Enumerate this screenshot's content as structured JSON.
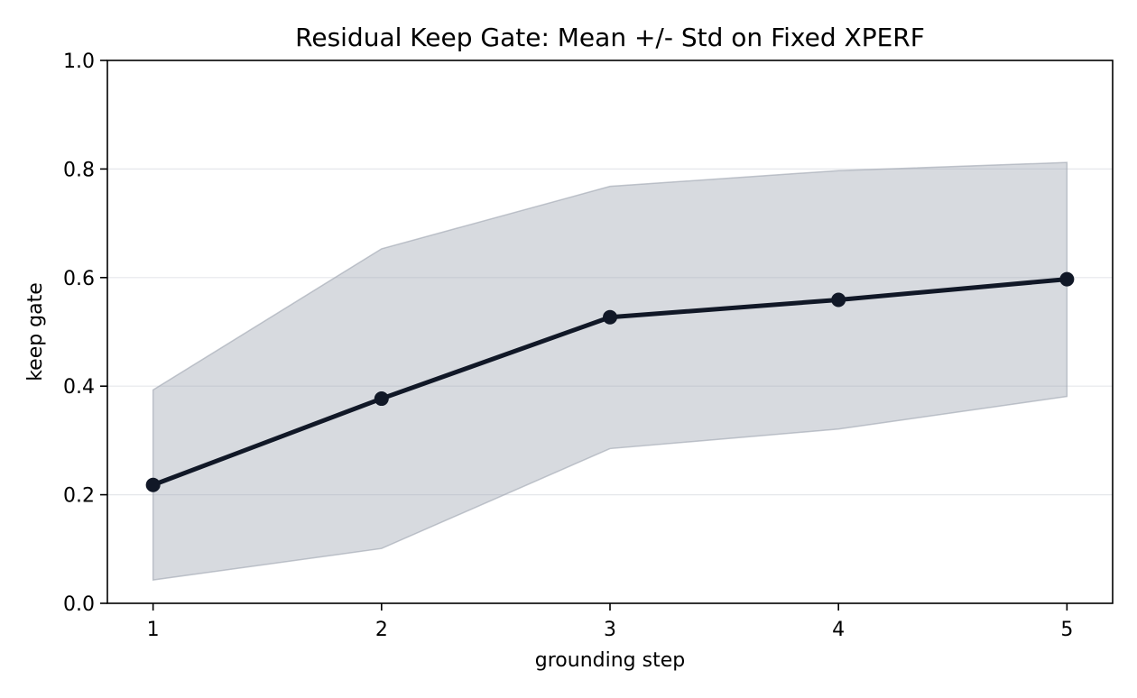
{
  "chart_data": {
    "type": "line",
    "title": "Residual Keep Gate: Mean +/- Std on Fixed XPERF",
    "xlabel": "grounding step",
    "ylabel": "keep gate",
    "x": [
      1,
      2,
      3,
      4,
      5
    ],
    "xlim": [
      0.8,
      5.2
    ],
    "ylim": [
      0.0,
      1.0
    ],
    "x_ticks": [
      "1",
      "2",
      "3",
      "4",
      "5"
    ],
    "y_ticks": [
      "0.0",
      "0.2",
      "0.4",
      "0.6",
      "0.8",
      "1.0"
    ],
    "grid": "horizontal",
    "series": [
      {
        "values": [
          0.218,
          0.377,
          0.527,
          0.559,
          0.597
        ],
        "std_lower": [
          0.043,
          0.101,
          0.285,
          0.321,
          0.381
        ],
        "std_upper": [
          0.393,
          0.653,
          0.768,
          0.797,
          0.812
        ],
        "color": "#111827",
        "band_color": "#9ca3af"
      }
    ]
  }
}
